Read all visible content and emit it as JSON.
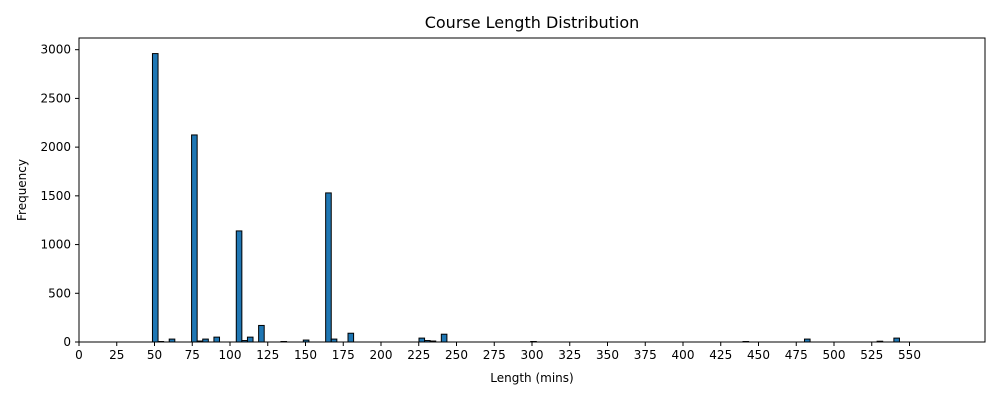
{
  "chart_data": {
    "type": "bar",
    "title": "Course Length Distribution",
    "xlabel": "Length (mins)",
    "ylabel": "Frequency",
    "xlim": [
      0,
      600
    ],
    "ylim": [
      0,
      3120
    ],
    "bin_width": 3.7,
    "x_ticks": [
      0,
      25,
      50,
      75,
      100,
      125,
      150,
      175,
      200,
      225,
      250,
      275,
      300,
      325,
      350,
      375,
      400,
      425,
      450,
      475,
      500,
      525,
      550
    ],
    "x_tick_labels": [
      "0",
      "25",
      "50",
      "75",
      "100",
      "125",
      "150",
      "175",
      "200",
      "225",
      "250",
      "275",
      "300",
      "325",
      "350",
      "375",
      "400",
      "425",
      "450",
      "475",
      "500",
      "525",
      "550"
    ],
    "y_ticks": [
      0,
      500,
      1000,
      1500,
      2000,
      2500,
      3000
    ],
    "y_tick_labels": [
      "0",
      "500",
      "1000",
      "1500",
      "2000",
      "2500",
      "3000"
    ],
    "bar_color": "#1f77b4",
    "edge_color": "#000000",
    "grid": false,
    "bins": [
      {
        "x": 50.5,
        "value": 2960
      },
      {
        "x": 54.2,
        "value": 5
      },
      {
        "x": 61.6,
        "value": 30
      },
      {
        "x": 76.4,
        "value": 2125
      },
      {
        "x": 80.1,
        "value": 10
      },
      {
        "x": 83.8,
        "value": 30
      },
      {
        "x": 91.2,
        "value": 50
      },
      {
        "x": 106.0,
        "value": 1140
      },
      {
        "x": 109.7,
        "value": 15
      },
      {
        "x": 113.4,
        "value": 50
      },
      {
        "x": 120.8,
        "value": 170
      },
      {
        "x": 135.6,
        "value": 5
      },
      {
        "x": 150.4,
        "value": 20
      },
      {
        "x": 165.2,
        "value": 1530
      },
      {
        "x": 168.9,
        "value": 30
      },
      {
        "x": 180.0,
        "value": 90
      },
      {
        "x": 227.0,
        "value": 40
      },
      {
        "x": 230.7,
        "value": 15
      },
      {
        "x": 234.4,
        "value": 10
      },
      {
        "x": 241.8,
        "value": 80
      },
      {
        "x": 301.0,
        "value": 5
      },
      {
        "x": 441.6,
        "value": 5
      },
      {
        "x": 482.3,
        "value": 30
      },
      {
        "x": 530.4,
        "value": 8
      },
      {
        "x": 541.5,
        "value": 40
      }
    ]
  }
}
